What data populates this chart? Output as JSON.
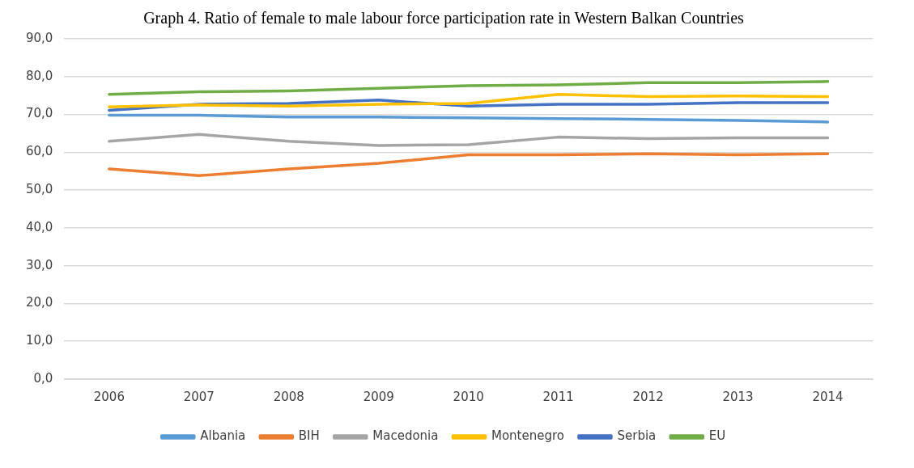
{
  "chart_data": {
    "type": "line",
    "title": "Graph 4. Ratio of female to male labour force participation rate in Western Balkan Countries",
    "categories": [
      "2006",
      "2007",
      "2008",
      "2009",
      "2010",
      "2011",
      "2012",
      "2013",
      "2014"
    ],
    "series": [
      {
        "name": "Albania",
        "color": "#5b9bd5",
        "values": [
          69.8,
          69.8,
          69.3,
          69.3,
          69.1,
          68.9,
          68.7,
          68.4,
          68.0
        ]
      },
      {
        "name": "BIH",
        "color": "#ed7d31",
        "values": [
          55.6,
          53.8,
          55.6,
          57.1,
          59.3,
          59.3,
          59.6,
          59.3,
          59.6
        ]
      },
      {
        "name": "Macedonia",
        "color": "#a5a5a5",
        "values": [
          62.9,
          64.7,
          62.9,
          61.8,
          62.0,
          64.0,
          63.6,
          63.8,
          63.8
        ]
      },
      {
        "name": "Montenegro",
        "color": "#ffc000",
        "values": [
          72.0,
          72.5,
          72.2,
          72.7,
          72.9,
          75.3,
          74.7,
          74.9,
          74.7
        ]
      },
      {
        "name": "Serbia",
        "color": "#4472c4",
        "values": [
          71.1,
          72.7,
          72.9,
          73.8,
          72.2,
          72.7,
          72.7,
          73.1,
          73.1
        ]
      },
      {
        "name": "EU",
        "color": "#70ad47",
        "values": [
          75.3,
          76.0,
          76.2,
          76.9,
          77.6,
          77.8,
          78.4,
          78.4,
          78.7
        ]
      }
    ],
    "ylim": [
      0,
      90
    ],
    "yticks": [
      {
        "value": 0,
        "label": "0,0"
      },
      {
        "value": 10,
        "label": "10,0"
      },
      {
        "value": 20,
        "label": "20,0"
      },
      {
        "value": 30,
        "label": "30,0"
      },
      {
        "value": 40,
        "label": "40,0"
      },
      {
        "value": 50,
        "label": "50,0"
      },
      {
        "value": 60,
        "label": "60,0"
      },
      {
        "value": 70,
        "label": "70,0"
      },
      {
        "value": 80,
        "label": "80,0"
      },
      {
        "value": 90,
        "label": "90,0"
      }
    ],
    "grid": "y",
    "legend": "bottom",
    "marker": "none",
    "line_style": "solid"
  }
}
